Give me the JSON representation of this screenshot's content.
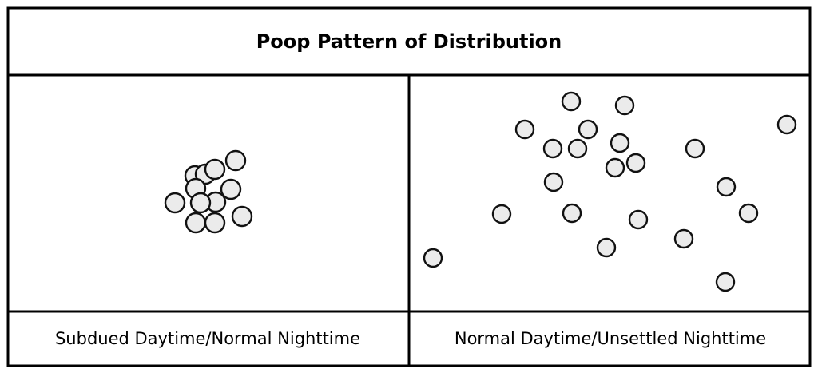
{
  "title": "Poop Pattern of Distribution",
  "panels": [
    {
      "caption": "Subdued Daytime/Normal Nighttime"
    },
    {
      "caption": "Normal Daytime/Unsettled Nighttime"
    }
  ],
  "colors": {
    "dot_fill": "#ebebeb",
    "dot_stroke": "#111111",
    "border": "#000000"
  }
}
